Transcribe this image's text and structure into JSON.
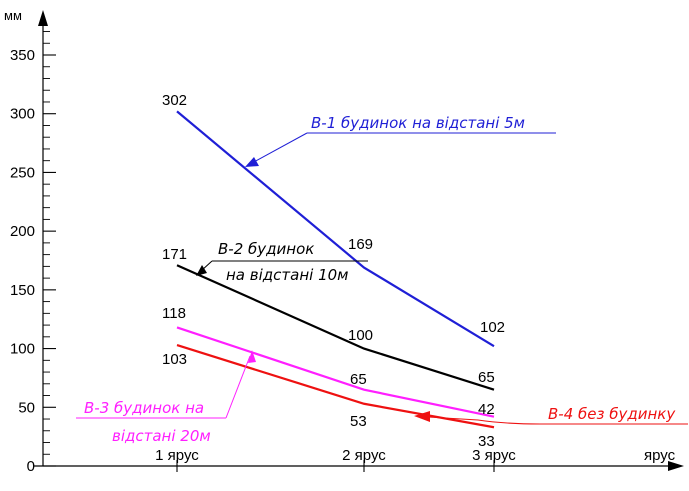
{
  "chart_data": {
    "type": "line",
    "y_unit": "мм",
    "x_axis_label": "ярус",
    "categories": [
      "1 ярус",
      "2 ярус",
      "3 ярус"
    ],
    "y_ticks": [
      0,
      50,
      100,
      150,
      200,
      250,
      300,
      350
    ],
    "ylim": [
      0,
      375
    ],
    "series": [
      {
        "name": "В-1 будинок на відстані 5м",
        "color": "#1f1fd6",
        "values": [
          302,
          169,
          102
        ],
        "labels": [
          "302",
          "169",
          "102"
        ],
        "annotation_lines": [
          "В-1 будинок на відстані 5м"
        ]
      },
      {
        "name": "В-2 будинок на відстані 10м",
        "color": "#000000",
        "values": [
          171,
          100,
          65
        ],
        "labels": [
          "171",
          "100",
          "65"
        ],
        "annotation_lines": [
          "В-2 будинок",
          "на відстані 10м"
        ]
      },
      {
        "name": "В-3 будинок на відстані 20м",
        "color": "#ff1fff",
        "values": [
          118,
          65,
          42
        ],
        "labels": [
          "118",
          "65",
          "42"
        ],
        "annotation_lines": [
          "В-3 будинок на",
          "відстані 20м"
        ]
      },
      {
        "name": "В-4 без будинку",
        "color": "#ee1111",
        "values": [
          103,
          53,
          33
        ],
        "labels": [
          "103",
          "53",
          "33"
        ],
        "annotation_lines": [
          "В-4 без будинку"
        ]
      }
    ]
  }
}
